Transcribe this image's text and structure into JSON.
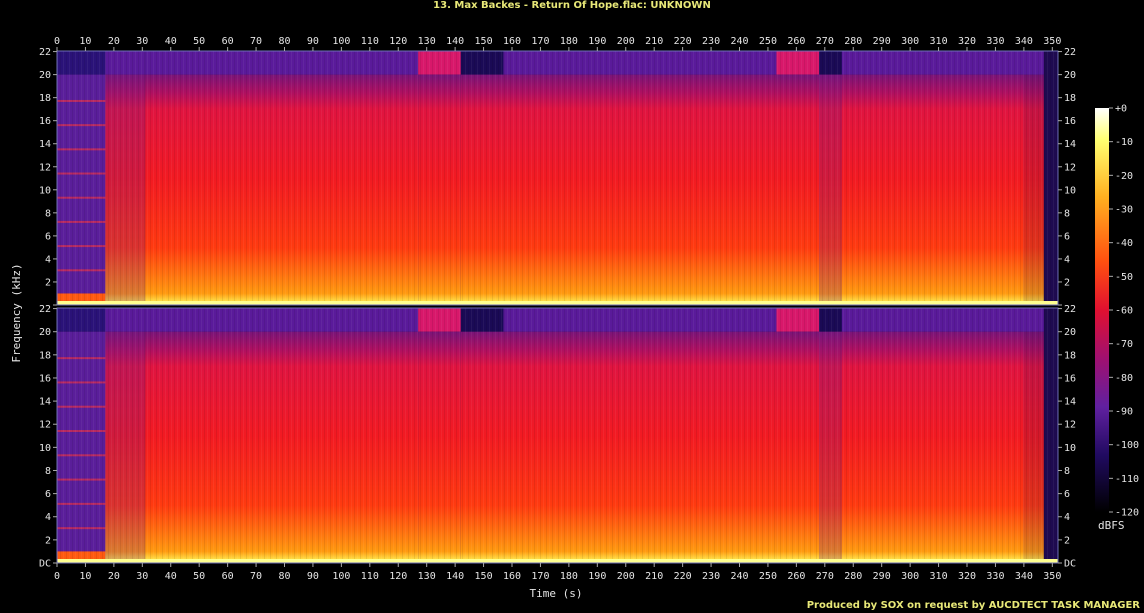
{
  "chart_data": {
    "type": "heatmap",
    "title": "13. Max Backes - Return Of Hope.flac: UNKNOWN",
    "xlabel": "Time (s)",
    "ylabel": "Frequency (kHz)",
    "colorbar_label": "dBFS",
    "xlim": [
      0,
      352
    ],
    "ylim": [
      0,
      22.05
    ],
    "x_ticks": [
      "0",
      "10",
      "20",
      "30",
      "40",
      "50",
      "60",
      "70",
      "80",
      "90",
      "100",
      "110",
      "120",
      "130",
      "140",
      "150",
      "160",
      "170",
      "180",
      "190",
      "200",
      "210",
      "220",
      "230",
      "240",
      "250",
      "260",
      "270",
      "280",
      "290",
      "300",
      "310",
      "320",
      "330",
      "340",
      "350"
    ],
    "y_ticks": [
      "DC",
      "2",
      "4",
      "6",
      "8",
      "10",
      "12",
      "14",
      "16",
      "18",
      "20",
      "22"
    ],
    "colorbar_ticks": [
      "+0",
      "-10",
      "-20",
      "-30",
      "-40",
      "-50",
      "-60",
      "-70",
      "-80",
      "-90",
      "-100",
      "-110",
      "-120"
    ],
    "channels": [
      "left",
      "right"
    ],
    "segments": [
      {
        "start": 0,
        "end": 17,
        "level": "quiet-sparse"
      },
      {
        "start": 17,
        "end": 31,
        "level": "medium"
      },
      {
        "start": 31,
        "end": 127,
        "level": "loud"
      },
      {
        "start": 127,
        "end": 142,
        "level": "loud-band"
      },
      {
        "start": 142,
        "end": 157,
        "level": "loud-hf-cut"
      },
      {
        "start": 157,
        "end": 253,
        "level": "loud"
      },
      {
        "start": 253,
        "end": 268,
        "level": "loud-band"
      },
      {
        "start": 268,
        "end": 276,
        "level": "medium-hf-cut"
      },
      {
        "start": 276,
        "end": 340,
        "level": "loud"
      },
      {
        "start": 340,
        "end": 352,
        "level": "fade-out"
      }
    ]
  },
  "footer": "Produced by SOX on request by AUCDTECT TASK MANAGER",
  "colors": {
    "background": "#000000",
    "text": "#e6e6e6",
    "title": "#e8e878",
    "axis": "#6e6eb8"
  }
}
